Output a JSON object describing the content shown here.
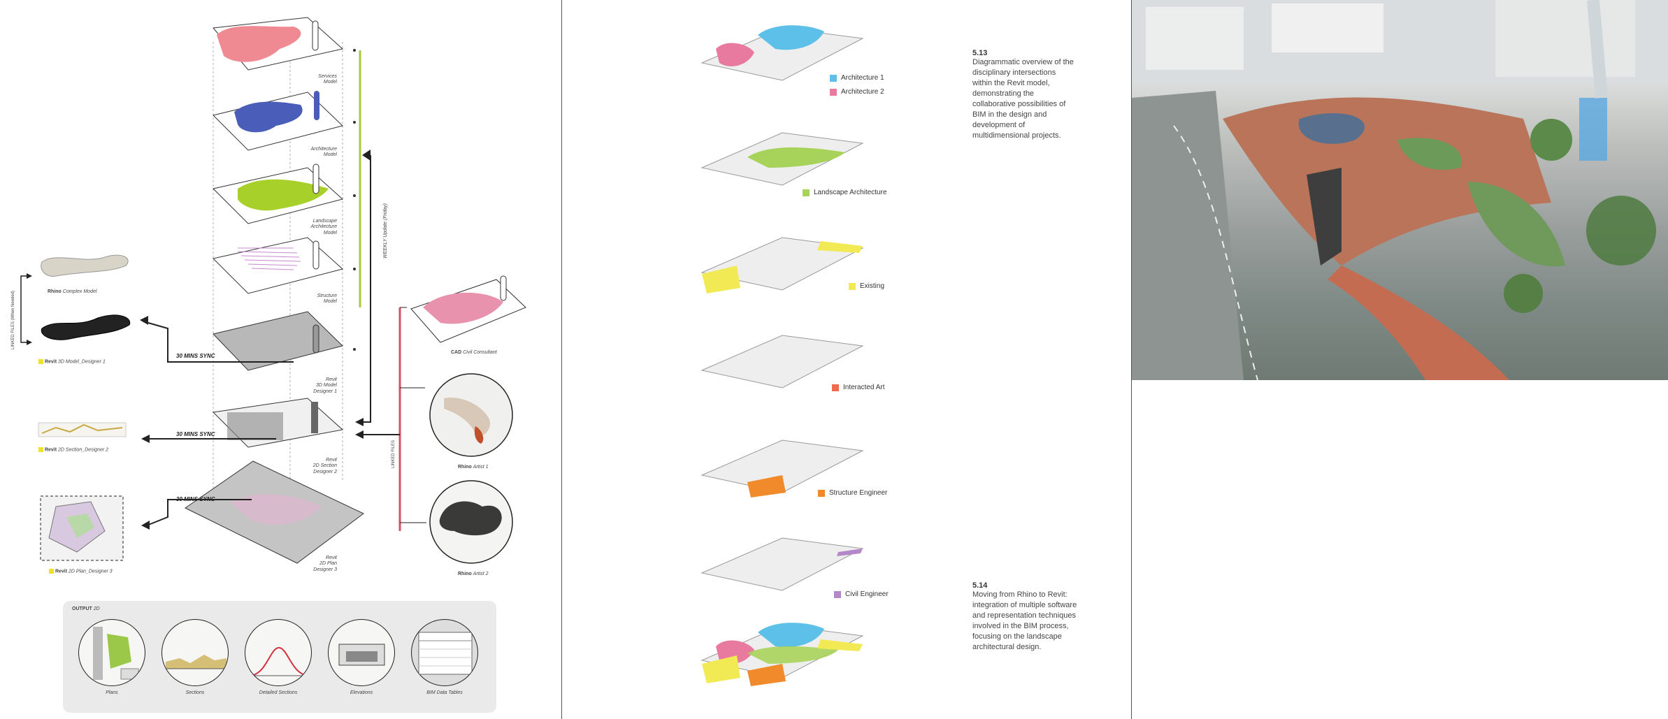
{
  "left_panel": {
    "layers": [
      {
        "name": "Services Model",
        "label": "Services\nModel"
      },
      {
        "name": "Architecture Model",
        "label": "Architecture\nModel"
      },
      {
        "name": "Landscape Architecture Model",
        "label": "Landscape\nArchitecture\nModel"
      },
      {
        "name": "Structure Model",
        "label": "Structure\nModel"
      },
      {
        "name": "Revit 3D Model",
        "label": "Revit\n3D Model\nDesigner 1"
      },
      {
        "name": "Revit 2D Section",
        "label": "Revit\n2D Section\nDesigner 2"
      },
      {
        "name": "Revit 2D Plan",
        "label": "Revit\n2D Plan\nDesigner 3"
      }
    ],
    "weekly_update": "WEEKLY Update (Friday)",
    "linked_files_left": "LINKED FILES (When Needed)",
    "linked_files_right": "LINKED FILES",
    "sync_labels": [
      "30 MINS SYNC",
      "30 MINS SYNC",
      "30 MINS SYNC"
    ],
    "left_items": [
      {
        "bold": "Rhino",
        "rest": "Complex Model"
      },
      {
        "bold": "Revit",
        "rest": "3D Model_Designer 1"
      },
      {
        "bold": "Revit",
        "rest": "2D Section_Designer 2"
      },
      {
        "bold": "Revit",
        "rest": "2D Plan_Designer 3"
      }
    ],
    "right_items": [
      {
        "bold": "CAD",
        "rest": "Civil Consultant"
      },
      {
        "bold": "Rhino",
        "rest": "Artist 1"
      },
      {
        "bold": "Rhino",
        "rest": "Artist 2"
      }
    ],
    "output": {
      "title_bold": "OUTPUT",
      "title_rest": "2D",
      "items": [
        "Plans",
        "Sections",
        "Detailed Sections",
        "Elevations",
        "BIM Data Tables"
      ]
    }
  },
  "middle_panel": {
    "legend": [
      {
        "label": "Architecture 1",
        "color": "#5cc0e8"
      },
      {
        "label": "Architecture 2",
        "color": "#e87aa0"
      },
      {
        "label": "Landscape Architecture",
        "color": "#a8d35a"
      },
      {
        "label": "Existing",
        "color": "#f2ea55"
      },
      {
        "label": "Interacted Art",
        "color": "#f06a50"
      },
      {
        "label": "Structure Engineer",
        "color": "#f08a2a"
      },
      {
        "label": "Civil Engineer",
        "color": "#b488c8"
      }
    ],
    "captions": [
      {
        "number": "5.13",
        "text": "Diagrammatic overview of the disciplinary intersections within the Revit model, demonstrating the collaborative possibilities of BIM in the design and development of multidimensional projects."
      },
      {
        "number": "5.14",
        "text": "Moving from Rhino to Revit: integration of multiple software and representation techniques involved in the BIM process, focusing on the landscape architectural design."
      }
    ]
  }
}
